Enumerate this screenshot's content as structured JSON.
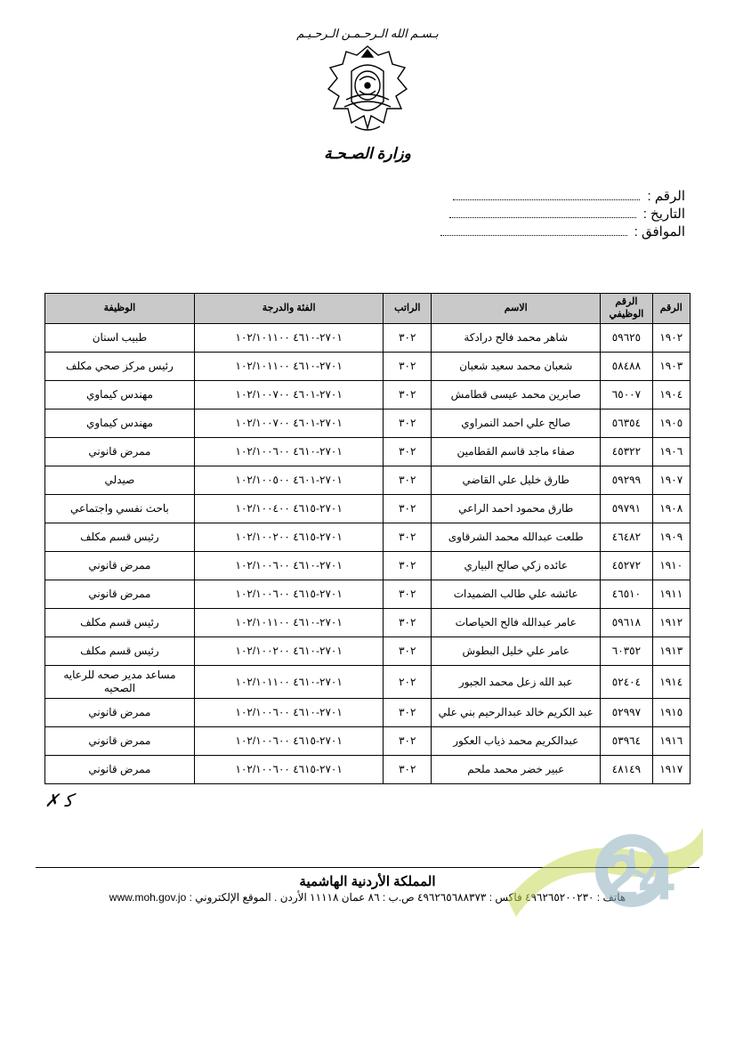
{
  "header": {
    "top_script": "بـسـم الله الـرحـمـن الـرحـيـم",
    "ministry_script": "وزارة الصـحـة",
    "ref_label": "الرقم :",
    "date_label": "التاريخ :",
    "hijri_label": "الموافق :"
  },
  "emblem": {
    "stroke": "#000000",
    "fill": "#ffffff",
    "width": 92,
    "height": 102
  },
  "table": {
    "header_bg": "#c9c9c9",
    "columns": [
      "الرقم",
      "الرقم الوظيفي",
      "الاسم",
      "الراتب",
      "الفئة والدرجة",
      "الوظيفة"
    ],
    "rows": [
      {
        "seq": "١٩٠٢",
        "id": "٥٩٦٢٥",
        "name": "شاهر محمد فالح درادكة",
        "rank": "٣٠٢",
        "code": "٢٧٠١-٤٦١٠  ١٠٢/١٠١١٠٠",
        "job": "طبيب اسنان"
      },
      {
        "seq": "١٩٠٣",
        "id": "٥٨٤٨٨",
        "name": "شعبان محمد سعيد شعبان",
        "rank": "٣٠٢",
        "code": "٢٧٠١-٤٦١٠  ١٠٢/١٠١١٠٠",
        "job": "رئيس مركز صحي مكلف"
      },
      {
        "seq": "١٩٠٤",
        "id": "٦٥٠٠٧",
        "name": "صابرين محمد عيسى قطامش",
        "rank": "٣٠٢",
        "code": "٢٧٠١-٤٦٠١  ١٠٢/١٠٠٧٠٠",
        "job": "مهندس كيماوي"
      },
      {
        "seq": "١٩٠٥",
        "id": "٥٦٣٥٤",
        "name": "صالح علي احمد النمراوي",
        "rank": "٣٠٢",
        "code": "٢٧٠١-٤٦٠١  ١٠٢/١٠٠٧٠٠",
        "job": "مهندس كيماوي"
      },
      {
        "seq": "١٩٠٦",
        "id": "٤٥٣٢٢",
        "name": "صفاء ماجد قاسم القطامين",
        "rank": "٣٠٢",
        "code": "٢٧٠١-٤٦١٠  ١٠٢/١٠٠٦٠٠",
        "job": "ممرض قانوني"
      },
      {
        "seq": "١٩٠٧",
        "id": "٥٩٢٩٩",
        "name": "طارق خليل علي القاضي",
        "rank": "٣٠٢",
        "code": "٢٧٠١-٤٦٠١  ١٠٢/١٠٠٥٠٠",
        "job": "صيدلي"
      },
      {
        "seq": "١٩٠٨",
        "id": "٥٩٧٩١",
        "name": "طارق محمود احمد الراعي",
        "rank": "٣٠٢",
        "code": "٢٧٠١-٤٦١٥  ١٠٢/١٠٠٤٠٠",
        "job": "باحث نفسي واجتماعي"
      },
      {
        "seq": "١٩٠٩",
        "id": "٤٦٤٨٢",
        "name": "طلعت عبدالله محمد الشرقاوى",
        "rank": "٣٠٢",
        "code": "٢٧٠١-٤٦١٥  ١٠٢/١٠٠٢٠٠",
        "job": "رئيس قسم مكلف"
      },
      {
        "seq": "١٩١٠",
        "id": "٤٥٢٧٢",
        "name": "عائده زكي صالح البياري",
        "rank": "٣٠٢",
        "code": "٢٧٠١-٤٦١٠  ١٠٢/١٠٠٦٠٠",
        "job": "ممرض قانوني"
      },
      {
        "seq": "١٩١١",
        "id": "٤٦٥١٠",
        "name": "عائشه علي طالب الضميدات",
        "rank": "٣٠٢",
        "code": "٢٧٠١-٤٦١٥  ١٠٢/١٠٠٦٠٠",
        "job": "ممرض قانوني"
      },
      {
        "seq": "١٩١٢",
        "id": "٥٩٦١٨",
        "name": "عامر عبدالله فالح الحياصات",
        "rank": "٣٠٢",
        "code": "٢٧٠١-٤٦١٠  ١٠٢/١٠١١٠٠",
        "job": "رئيس قسم مكلف"
      },
      {
        "seq": "١٩١٣",
        "id": "٦٠٣٥٢",
        "name": "عامر علي خليل البطوش",
        "rank": "٣٠٢",
        "code": "٢٧٠١-٤٦١٠  ١٠٢/١٠٠٢٠٠",
        "job": "رئيس قسم مكلف"
      },
      {
        "seq": "١٩١٤",
        "id": "٥٢٤٠٤",
        "name": "عبد الله زعل محمد الجبور",
        "rank": "٢٠٢",
        "code": "٢٧٠١-٤٦١٠  ١٠٢/١٠١١٠٠",
        "job": "مساعد مدير صحه للرعايه الصحيه"
      },
      {
        "seq": "١٩١٥",
        "id": "٥٢٩٩٧",
        "name": "عبد الكريم خالد عبدالرحيم بني علي",
        "rank": "٣٠٢",
        "code": "٢٧٠١-٤٦١٠  ١٠٢/١٠٠٦٠٠",
        "job": "ممرض قانوني"
      },
      {
        "seq": "١٩١٦",
        "id": "٥٣٩٦٤",
        "name": "عبدالكريم محمد ذياب العكور",
        "rank": "٣٠٢",
        "code": "٢٧٠١-٤٦١٥  ١٠٢/١٠٠٦٠٠",
        "job": "ممرض قانوني"
      },
      {
        "seq": "١٩١٧",
        "id": "٤٨١٤٩",
        "name": "عبير خضر محمد ملحم",
        "rank": "٣٠٢",
        "code": "٢٧٠١-٤٦١٥  ١٠٢/١٠٠٦٠٠",
        "job": "ممرض قانوني"
      }
    ]
  },
  "footer": {
    "kingdom": "المملكة الأردنية الهاشمية",
    "line": "هاتف : ٤٩٦٢٦٥٢٠٠٢٣٠  فاكس : ٤٩٦٢٦٥٦٨٨٣٧٣  ص.ب : ٨٦ عمان ١١١١٨ الأردن . الموقع الإلكتروني :",
    "url": "www.moh.gov.jo"
  },
  "watermark": {
    "text": "24",
    "swoosh_color": "#c9d958",
    "num_color": "#8db0bf",
    "opacity": 0.55
  }
}
